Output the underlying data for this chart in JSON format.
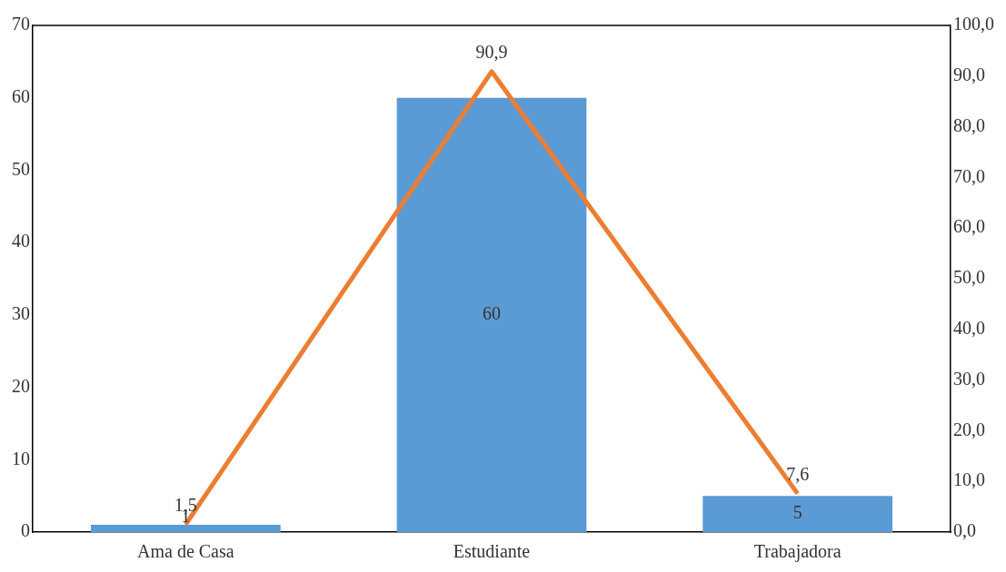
{
  "chart_data": {
    "type": "bar",
    "categories": [
      "Ama de Casa",
      "Estudiante",
      "Trabajadora"
    ],
    "series": [
      {
        "color": "#5b9bd5",
        "values": [
          1,
          60,
          5
        ]
      },
      {
        "type": "line",
        "axis": "y2",
        "color": "#ed7d31",
        "values": [
          1.5,
          90.9,
          7.6
        ],
        "value_labels": [
          "1,5",
          "90,9",
          "7,6"
        ]
      }
    ],
    "ylim": [
      0,
      70
    ],
    "yticks": [
      0,
      10,
      20,
      30,
      40,
      50,
      60,
      70
    ],
    "y2lim": [
      0,
      100
    ],
    "y2ticks": [
      {
        "value": 0,
        "label": "0,0"
      },
      {
        "value": 10,
        "label": "10,0"
      },
      {
        "value": 20,
        "label": "20,0"
      },
      {
        "value": 30,
        "label": "30,0"
      },
      {
        "value": 40,
        "label": "40,0"
      },
      {
        "value": 50,
        "label": "50,0"
      },
      {
        "value": 60,
        "label": "60,0"
      },
      {
        "value": 70,
        "label": "70,0"
      },
      {
        "value": 80,
        "label": "80,0"
      },
      {
        "value": 90,
        "label": "90,0"
      },
      {
        "value": 100,
        "label": "100,0"
      }
    ],
    "data_labels": true,
    "grid": false,
    "legend": false,
    "marker": "none",
    "line_style": "solid"
  }
}
